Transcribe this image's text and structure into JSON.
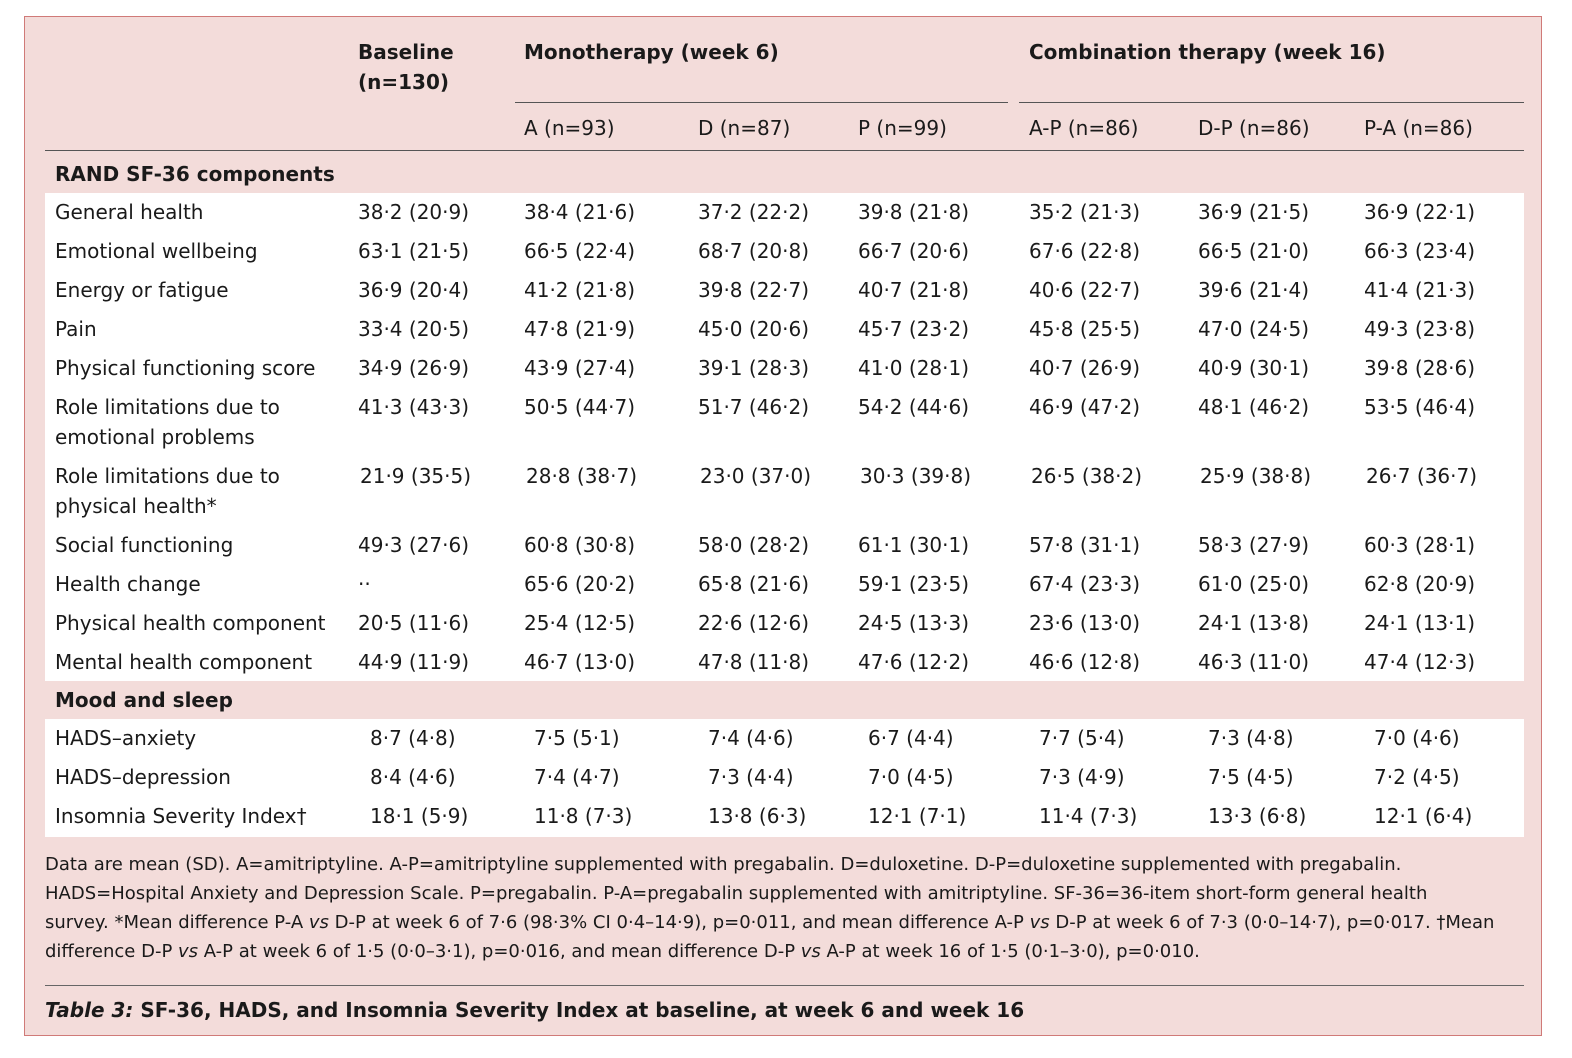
{
  "header": {
    "baseline": "Baseline",
    "baseline_n": "(n=130)",
    "mono": "Monotherapy (week 6)",
    "combo": "Combination therapy (week 16)",
    "cols": [
      "A (n=93)",
      "D (n=87)",
      "P (n=99)",
      "A-P (n=86)",
      "D-P (n=86)",
      "P-A (n=86)"
    ]
  },
  "sections": [
    {
      "title": "RAND SF-36 components",
      "rows": [
        {
          "label": "General health",
          "values": [
            "38·2 (20·9)",
            "38·4 (21·6)",
            "37·2 (22·2)",
            "39·8 (21·8)",
            "35·2 (21·3)",
            "36·9 (21·5)",
            "36·9 (22·1)"
          ]
        },
        {
          "label": "Emotional wellbeing",
          "values": [
            "63·1 (21·5)",
            "66·5 (22·4)",
            "68·7 (20·8)",
            "66·7 (20·6)",
            "67·6 (22·8)",
            "66·5 (21·0)",
            "66·3 (23·4)"
          ]
        },
        {
          "label": "Energy or fatigue",
          "values": [
            "36·9 (20·4)",
            "41·2 (21·8)",
            "39·8 (22·7)",
            "40·7 (21·8)",
            "40·6 (22·7)",
            "39·6 (21·4)",
            "41·4 (21·3)"
          ]
        },
        {
          "label": "Pain",
          "values": [
            "33·4 (20·5)",
            "47·8 (21·9)",
            "45·0 (20·6)",
            "45·7 (23·2)",
            "45·8 (25·5)",
            "47·0 (24·5)",
            "49·3 (23·8)"
          ]
        },
        {
          "label": "Physical functioning score",
          "values": [
            "34·9 (26·9)",
            "43·9 (27·4)",
            "39·1 (28·3)",
            "41·0 (28·1)",
            "40·7 (26·9)",
            "40·9 (30·1)",
            "39·8 (28·6)"
          ]
        },
        {
          "label": "Role limitations due to emotional problems",
          "values": [
            "41·3 (43·3)",
            "50·5 (44·7)",
            "51·7 (46·2)",
            "54·2 (44·6)",
            "46·9 (47·2)",
            "48·1 (46·2)",
            "53·5 (46·4)"
          ]
        },
        {
          "label": "Role limitations due to physical health*",
          "values": [
            "21·9 (35·5)",
            "28·8 (38·7)",
            "23·0 (37·0)",
            "30·3 (39·8)",
            "26·5 (38·2)",
            "25·9 (38·8)",
            "26·7 (36·7)"
          ]
        },
        {
          "label": "Social functioning",
          "values": [
            "49·3 (27·6)",
            "60·8 (30·8)",
            "58·0 (28·2)",
            "61·1 (30·1)",
            "57·8 (31·1)",
            "58·3 (27·9)",
            "60·3 (28·1)"
          ]
        },
        {
          "label": "Health change",
          "values": [
            "··",
            "65·6 (20·2)",
            "65·8 (21·6)",
            "59·1 (23·5)",
            "67·4 (23·3)",
            "61·0 (25·0)",
            "62·8 (20·9)"
          ]
        },
        {
          "label": "Physical health component",
          "values": [
            "20·5 (11·6)",
            "25·4 (12·5)",
            "22·6 (12·6)",
            "24·5 (13·3)",
            "23·6 (13·0)",
            "24·1 (13·8)",
            "24·1 (13·1)"
          ]
        },
        {
          "label": "Mental health component",
          "values": [
            "44·9 (11·9)",
            "46·7 (13·0)",
            "47·8 (11·8)",
            "47·6 (12·2)",
            "46·6 (12·8)",
            "46·3 (11·0)",
            "47·4 (12·3)"
          ]
        }
      ]
    },
    {
      "title": "Mood and sleep",
      "rows": [
        {
          "label": "HADS–anxiety",
          "values": [
            "8·7 (4·8)",
            "7·5 (5·1)",
            "7·4 (4·6)",
            "6·7 (4·4)",
            "7·7 (5·4)",
            "7·3 (4·8)",
            "7·0 (4·6)"
          ]
        },
        {
          "label": "HADS–depression",
          "values": [
            "8·4 (4·6)",
            "7·4 (4·7)",
            "7·3 (4·4)",
            "7·0 (4·5)",
            "7·3 (4·9)",
            "7·5 (4·5)",
            "7·2 (4·5)"
          ]
        },
        {
          "label": "Insomnia Severity Index†",
          "values": [
            "18·1 (5·9)",
            "11·8 (7·3)",
            "13·8 (6·3)",
            "12·1 (7·1)",
            "11·4 (7·3)",
            "13·3 (6·8)",
            "12·1 (6·4)"
          ]
        }
      ]
    }
  ],
  "footnote": {
    "part1": "Data are mean (SD). A=amitriptyline. A-P=amitriptyline supplemented with pregabalin. D=duloxetine. D-P=duloxetine supplemented with pregabalin. HADS=Hospital Anxiety and Depression Scale. P=pregabalin. P-A=pregabalin supplemented with amitriptyline. SF-36=36-item short-form general health survey. *Mean difference P-A ",
    "vs1": "vs",
    "part2": " D-P at week 6 of 7·6 (98·3% CI 0·4–14·9), p=0·011, and mean difference A-P ",
    "vs2": "vs",
    "part3": " D-P at week 6 of 7·3 (0·0–14·7), p=0·017. †Mean difference D-P ",
    "vs3": "vs",
    "part4": " A-P at week 6 of 1·5 (0·0–3·1), p=0·016, and mean difference D-P ",
    "vs4": "vs",
    "part5": " A-P at week 16 of 1·5 (0·1–3·0), p=0·010."
  },
  "caption": {
    "number": "Table 3:",
    "text": " SF-36, HADS, and Insomnia Severity Index at baseline, at week 6 and week 16"
  }
}
